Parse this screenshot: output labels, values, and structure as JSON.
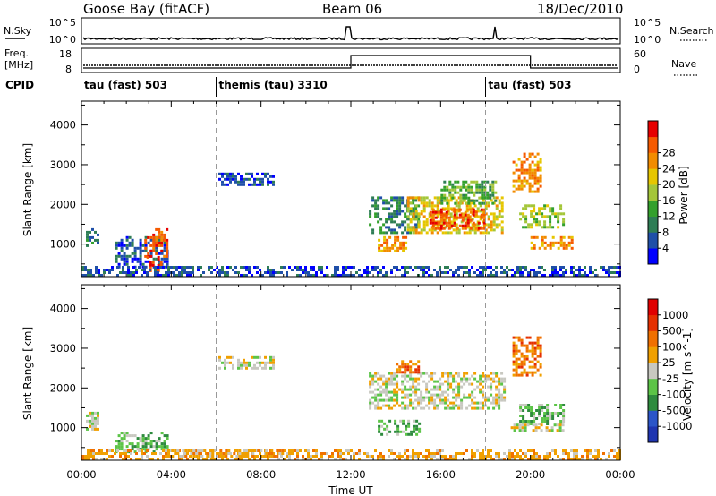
{
  "header": {
    "site": "Goose Bay (fitACF)",
    "beam": "Beam 06",
    "date": "18/Dec/2010"
  },
  "noise_panel": {
    "left_label": "N.Sky",
    "right_label": "N.Search",
    "left_ticks": [
      "10^5",
      "10^0"
    ],
    "right_ticks": [
      "10^5",
      "10^0"
    ]
  },
  "freq_panel": {
    "left_label_1": "Freq.",
    "left_label_2": "[MHz]",
    "right_label": "Nave",
    "left_ticks": [
      "18",
      "8"
    ],
    "right_ticks": [
      "60",
      "0"
    ]
  },
  "cpid": {
    "label": "CPID",
    "segments": [
      {
        "label": "tau (fast) 503",
        "start_h": 0,
        "end_h": 6
      },
      {
        "label": "themis (tau) 3310",
        "start_h": 6,
        "end_h": 18
      },
      {
        "label": "tau (fast) 503",
        "start_h": 18,
        "end_h": 24
      }
    ]
  },
  "x_axis": {
    "label": "Time UT",
    "ticks": [
      "00:00",
      "04:00",
      "08:00",
      "12:00",
      "16:00",
      "20:00",
      "00:00"
    ]
  },
  "power_panel": {
    "ylabel": "Slant Range [km]",
    "yticks": [
      "1000",
      "2000",
      "3000",
      "4000"
    ],
    "cbar_label": "Power [dB]",
    "cbar_ticks": [
      "4",
      "8",
      "12",
      "16",
      "20",
      "24",
      "28"
    ],
    "cbar_colors": [
      "#0000ff",
      "#1f4fa8",
      "#2e7d55",
      "#33a02c",
      "#a4c639",
      "#e6c600",
      "#f28c00",
      "#f55a00",
      "#e60000"
    ]
  },
  "velocity_panel": {
    "ylabel": "Slant Range [km]",
    "yticks": [
      "1000",
      "2000",
      "3000",
      "4000"
    ],
    "cbar_label": "Velocity [m s^-1]",
    "cbar_ticks": [
      "1000",
      "500",
      "100",
      "25",
      "-25",
      "-100",
      "-500",
      "-1000"
    ],
    "cbar_colors": [
      "#1f35b0",
      "#2b55c8",
      "#2e8b3e",
      "#5cc447",
      "#c8c8c0",
      "#f0a000",
      "#f07000",
      "#e53000",
      "#e00000"
    ]
  },
  "chart_data": {
    "type": "heatmap",
    "x_range_hours": [
      0,
      24
    ],
    "y_range_km": [
      180,
      4600
    ],
    "nave_step_hours": [
      12,
      20
    ],
    "power_regions": [
      {
        "t0": 0.2,
        "t1": 0.7,
        "r0": 950,
        "r1": 1400,
        "level": 2
      },
      {
        "t0": 1.5,
        "t1": 3.8,
        "r0": 400,
        "r1": 1200,
        "level": 1
      },
      {
        "t0": 2.8,
        "t1": 3.8,
        "r0": 700,
        "r1": 1400,
        "level": 7
      },
      {
        "t0": 2.9,
        "t1": 3.6,
        "r0": 350,
        "r1": 700,
        "level": 8
      },
      {
        "t0": 0.0,
        "t1": 24.0,
        "r0": 180,
        "r1": 450,
        "level": 1
      },
      {
        "t0": 6.1,
        "t1": 8.5,
        "r0": 2500,
        "r1": 2800,
        "level": 1
      },
      {
        "t0": 12.8,
        "t1": 15.0,
        "r0": 1300,
        "r1": 2200,
        "level": 2
      },
      {
        "t0": 13.2,
        "t1": 14.5,
        "r0": 850,
        "r1": 1200,
        "level": 6
      },
      {
        "t0": 14.5,
        "t1": 18.8,
        "r0": 1300,
        "r1": 2200,
        "level": 5
      },
      {
        "t0": 15.5,
        "t1": 18.0,
        "r0": 1400,
        "r1": 1900,
        "level": 7
      },
      {
        "t0": 16.0,
        "t1": 18.5,
        "r0": 2000,
        "r1": 2600,
        "level": 3
      },
      {
        "t0": 19.2,
        "t1": 20.5,
        "r0": 2300,
        "r1": 3300,
        "level": 6
      },
      {
        "t0": 20.0,
        "t1": 21.8,
        "r0": 900,
        "r1": 1200,
        "level": 6
      },
      {
        "t0": 19.5,
        "t1": 21.5,
        "r0": 1400,
        "r1": 2000,
        "level": 4
      }
    ],
    "velocity_regions": [
      {
        "t0": 0.2,
        "t1": 0.7,
        "r0": 950,
        "r1": 1400,
        "level": 4
      },
      {
        "t0": 1.5,
        "t1": 3.8,
        "r0": 400,
        "r1": 900,
        "level": 3
      },
      {
        "t0": 0.0,
        "t1": 24.0,
        "r0": 180,
        "r1": 450,
        "level": 5
      },
      {
        "t0": 4.0,
        "t1": 9.0,
        "r0": 250,
        "r1": 450,
        "level": 5
      },
      {
        "t0": 6.1,
        "t1": 8.5,
        "r0": 2500,
        "r1": 2800,
        "level": 4
      },
      {
        "t0": 12.8,
        "t1": 18.8,
        "r0": 1500,
        "r1": 2400,
        "level": 4
      },
      {
        "t0": 13.2,
        "t1": 15.0,
        "r0": 850,
        "r1": 1200,
        "level": 3
      },
      {
        "t0": 14.0,
        "t1": 15.0,
        "r0": 2400,
        "r1": 2700,
        "level": 6
      },
      {
        "t0": 19.2,
        "t1": 20.5,
        "r0": 2300,
        "r1": 3300,
        "level": 6
      },
      {
        "t0": 19.5,
        "t1": 21.5,
        "r0": 1100,
        "r1": 1600,
        "level": 3
      },
      {
        "t0": 19.0,
        "t1": 21.5,
        "r0": 900,
        "r1": 1100,
        "level": 4
      }
    ]
  }
}
